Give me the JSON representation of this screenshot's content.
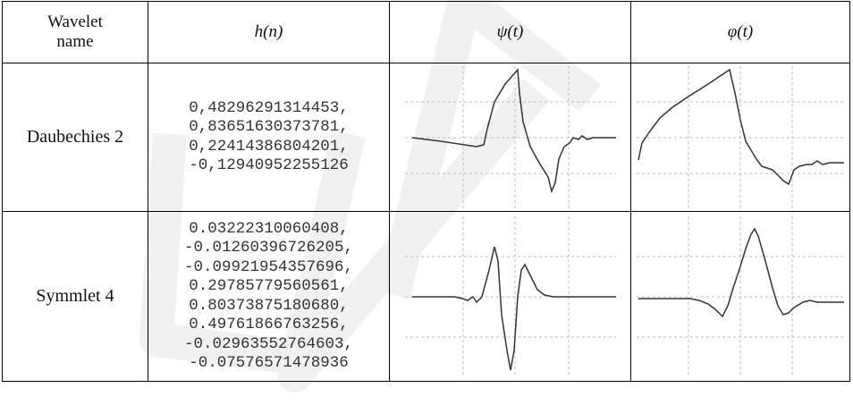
{
  "table": {
    "headers": {
      "name_line1": "Wavelet",
      "name_line2": "name",
      "h": "h(n)",
      "psi": "ψ(t)",
      "phi": "φ(t)"
    },
    "rows": [
      {
        "name": "Daubechies 2",
        "coefficients": [
          "0,48296291314453,",
          "0,83651630373781,",
          "0,22414386804201,",
          "-0,12940952255126"
        ]
      },
      {
        "name": "Symmlet 4",
        "coefficients": [
          "0.03222310060408,",
          "-0.01260396726205,",
          "-0.09921954357696,",
          "0.29785779560561,",
          "0.80373875180680,",
          "0.49761866763256,",
          "-0.02963552764603,",
          "-0.07576571478936"
        ]
      }
    ]
  }
}
